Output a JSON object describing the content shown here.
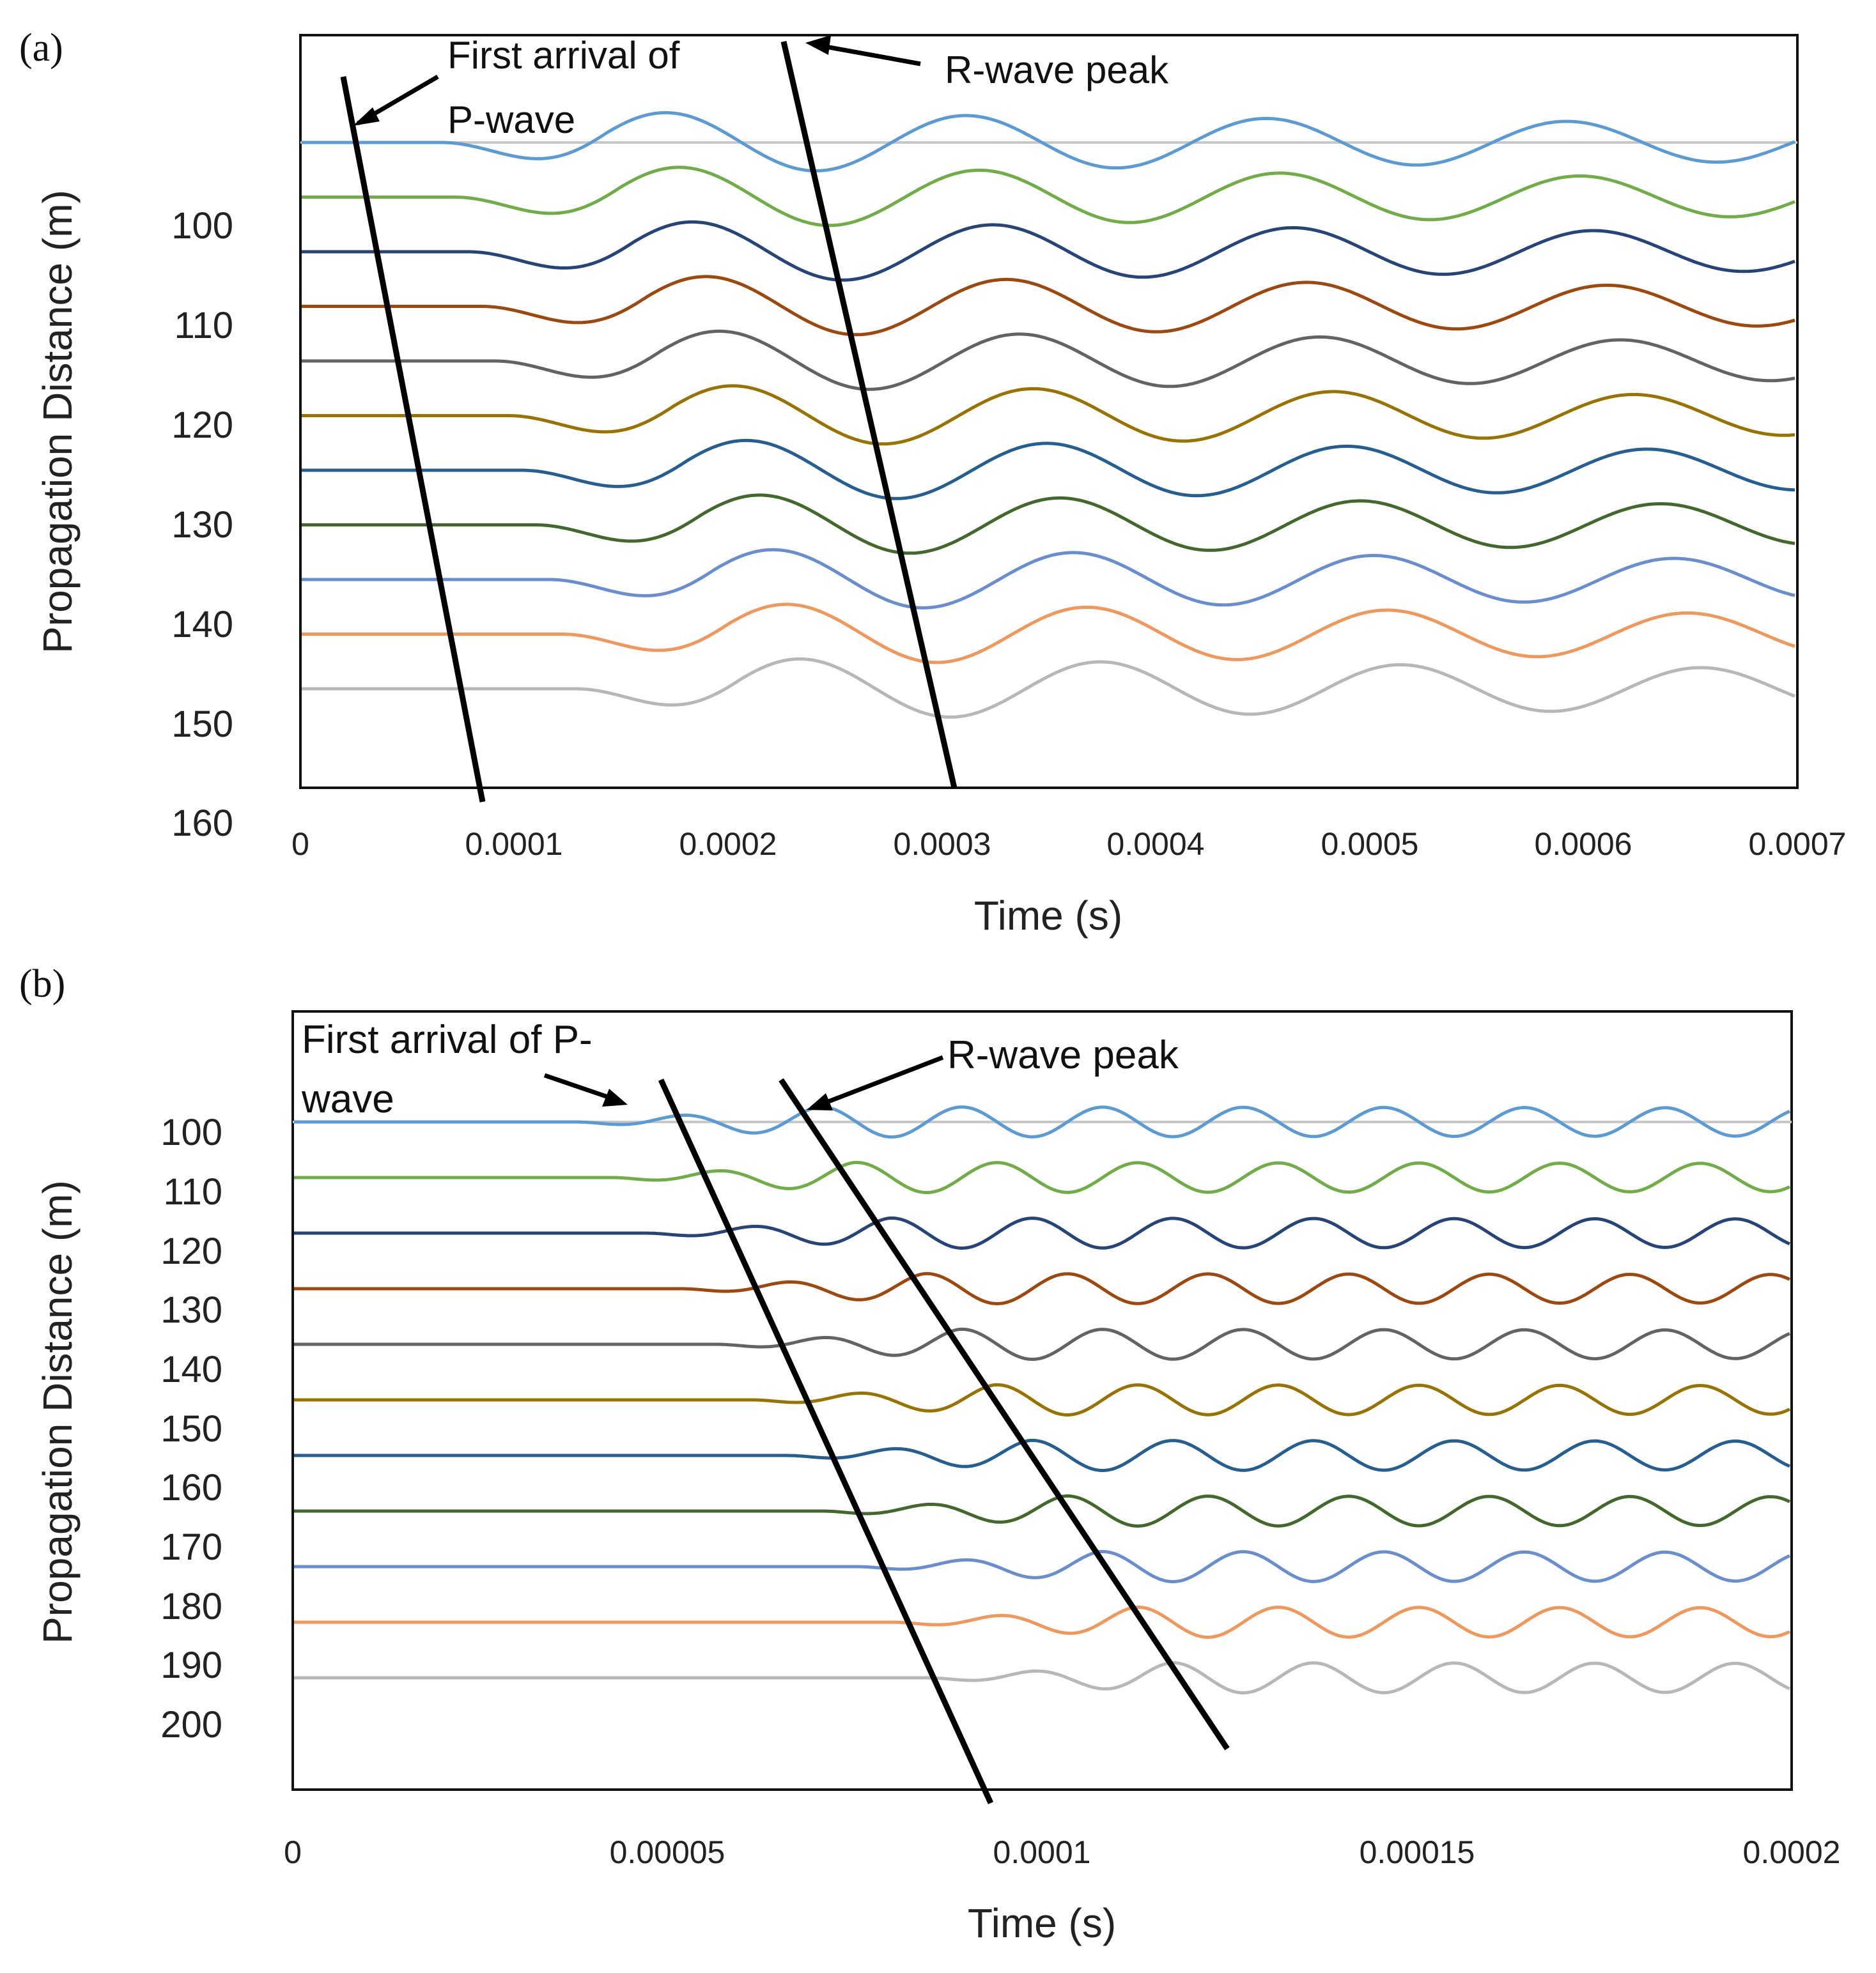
{
  "chart_data": [
    {
      "panel_label": "(a)",
      "type": "line",
      "xlabel": "Time (s)",
      "ylabel": "Propagation Distance (m)",
      "xlim": [
        0,
        0.0007
      ],
      "x_ticks": [
        "0",
        "0.0001",
        "0.0002",
        "0.0003",
        "0.0004",
        "0.0005",
        "0.0006",
        "0.0007"
      ],
      "y_ticks": [
        "100",
        "110",
        "120",
        "130",
        "140",
        "150",
        "160"
      ],
      "baseline_color": "#c8c8c8",
      "trace_colors": [
        "#5b9bd5",
        "#70ad47",
        "#264478",
        "#9e480e",
        "#636363",
        "#997300",
        "#255e91",
        "#43682b",
        "#698ed0",
        "#f1975a",
        "#b7b7b7"
      ],
      "annotations": {
        "p_wave_line1": "First arrival of",
        "p_wave_line2": "P-wave",
        "r_wave": "R-wave peak"
      }
    },
    {
      "panel_label": "(b)",
      "type": "line",
      "xlabel": "Time (s)",
      "ylabel": "Propagation Distance (m)",
      "xlim": [
        0,
        0.0002
      ],
      "x_ticks": [
        "0",
        "0.00005",
        "0.0001",
        "0.00015",
        "0.0002"
      ],
      "y_ticks": [
        "100",
        "110",
        "120",
        "130",
        "140",
        "150",
        "160",
        "170",
        "180",
        "190",
        "200"
      ],
      "baseline_color": "#c8c8c8",
      "trace_colors": [
        "#5b9bd5",
        "#70ad47",
        "#264478",
        "#9e480e",
        "#636363",
        "#997300",
        "#255e91",
        "#43682b",
        "#698ed0",
        "#f1975a",
        "#b7b7b7"
      ],
      "annotations": {
        "p_wave_line1": "First arrival of P-",
        "p_wave_line2": "wave",
        "r_wave": "R-wave peak"
      }
    }
  ]
}
